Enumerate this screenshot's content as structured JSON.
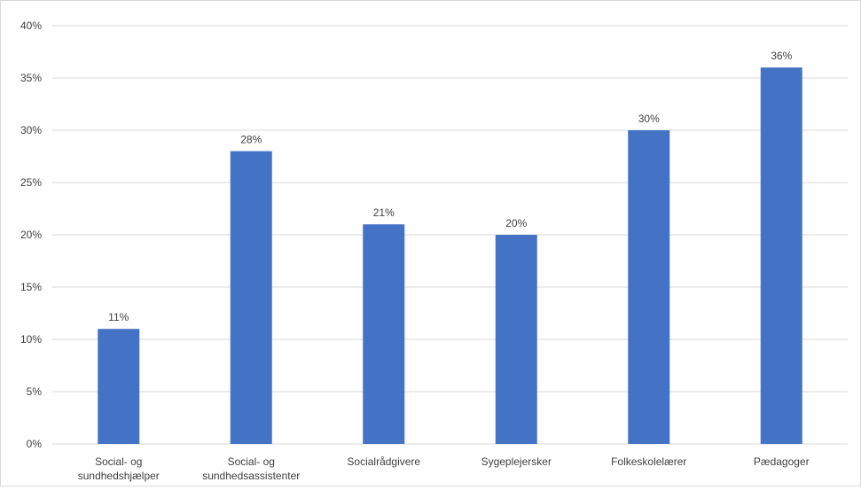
{
  "chart_data": {
    "type": "bar",
    "categories": [
      [
        "Social- og",
        "sundhedshjælper"
      ],
      [
        "Social- og",
        "sundhedsassistenter"
      ],
      [
        "Socialrådgivere"
      ],
      [
        "Sygeplejersker"
      ],
      [
        "Folkeskolelærer"
      ],
      [
        "Pædagoger"
      ]
    ],
    "values": [
      11,
      28,
      21,
      20,
      30,
      36
    ],
    "data_labels": [
      "11%",
      "28%",
      "21%",
      "20%",
      "30%",
      "36%"
    ],
    "ylim": [
      0,
      40
    ],
    "yticks": [
      0,
      5,
      10,
      15,
      20,
      25,
      30,
      35,
      40
    ],
    "ytick_labels": [
      "0%",
      "5%",
      "10%",
      "15%",
      "20%",
      "25%",
      "30%",
      "35%",
      "40%"
    ],
    "title": "",
    "xlabel": "",
    "ylabel": "",
    "grid": true,
    "legend": "none",
    "colors": {
      "bar": "#4472C4",
      "grid": "#d9d9d9",
      "text": "#404040"
    }
  }
}
